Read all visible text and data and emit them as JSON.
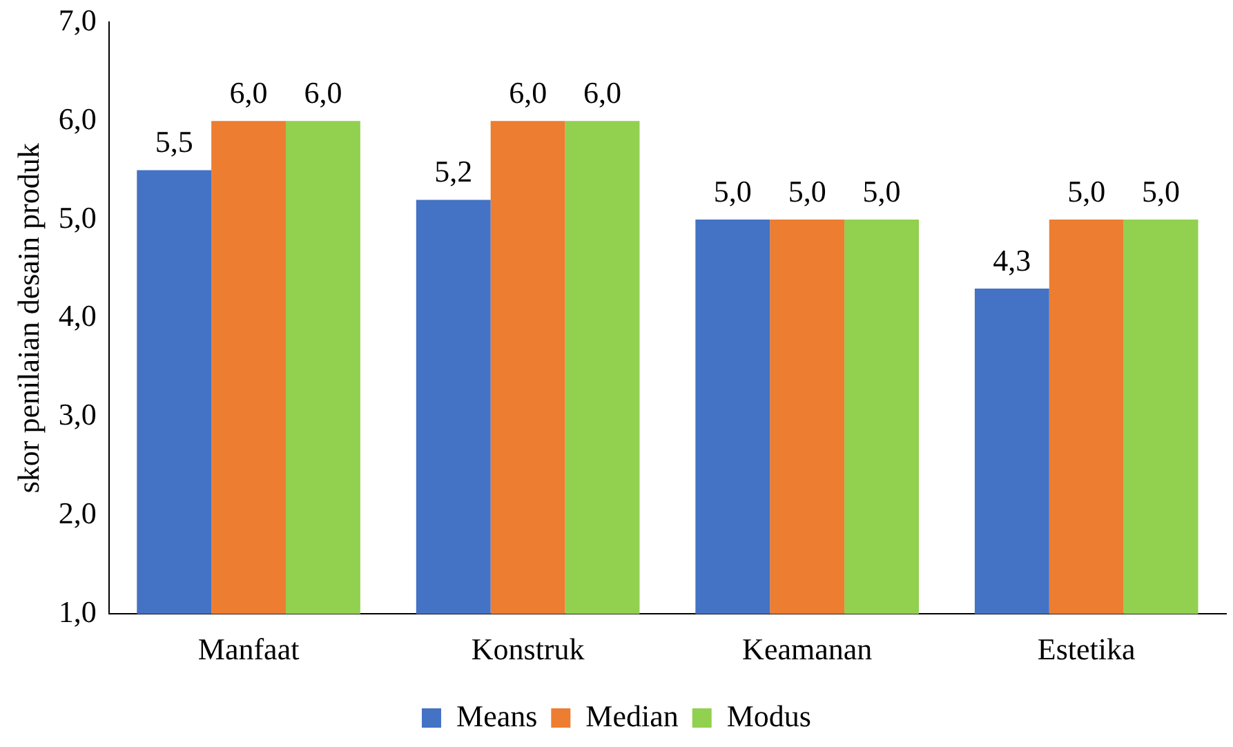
{
  "chart_data": {
    "type": "bar",
    "ylabel": "skor penilaian desain produk",
    "categories": [
      "Manfaat",
      "Konstruk",
      "Keamanan",
      "Estetika"
    ],
    "series": [
      {
        "name": "Means",
        "color": "#4472c4",
        "values": [
          5.5,
          5.2,
          5.0,
          4.3
        ],
        "value_labels": [
          "5,5",
          "5,2",
          "5,0",
          "4,3"
        ]
      },
      {
        "name": "Median",
        "color": "#ed7d31",
        "values": [
          6.0,
          6.0,
          5.0,
          5.0
        ],
        "value_labels": [
          "6,0",
          "6,0",
          "5,0",
          "5,0"
        ]
      },
      {
        "name": "Modus",
        "color": "#92d050",
        "values": [
          6.0,
          6.0,
          5.0,
          5.0
        ],
        "value_labels": [
          "6,0",
          "6,0",
          "5,0",
          "5,0"
        ]
      }
    ],
    "ylim": [
      1,
      7
    ],
    "yticks": [
      {
        "value": 1,
        "label": "1,0"
      },
      {
        "value": 2,
        "label": "2,0"
      },
      {
        "value": 3,
        "label": "3,0"
      },
      {
        "value": 4,
        "label": "4,0"
      },
      {
        "value": 5,
        "label": "5,0"
      },
      {
        "value": 6,
        "label": "6,0"
      },
      {
        "value": 7,
        "label": "7,0"
      }
    ],
    "grid": false,
    "legend": "bottom"
  }
}
